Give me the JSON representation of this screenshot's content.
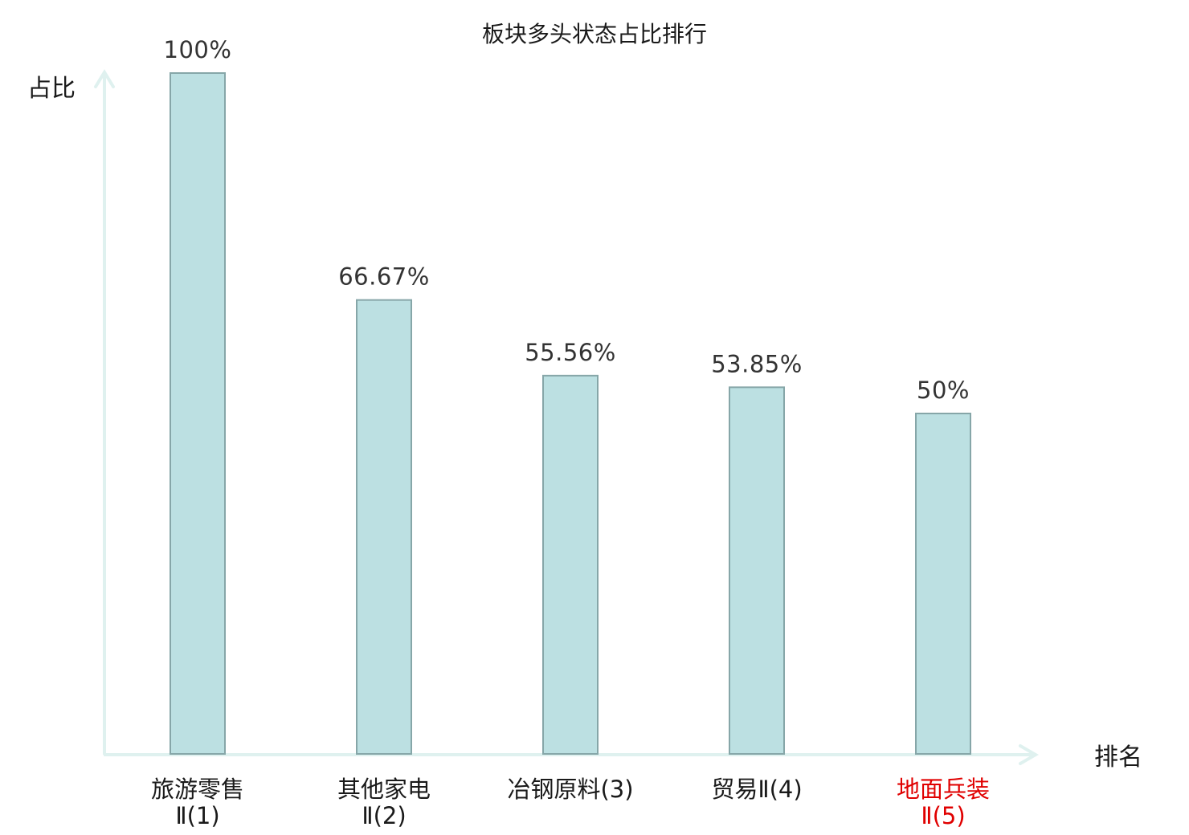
{
  "chart_data": {
    "type": "bar",
    "title": "板块多头状态占比排行",
    "xlabel": "排名",
    "ylabel": "占比",
    "ylim": [
      0,
      100
    ],
    "categories": [
      [
        "旅游零售",
        "Ⅱ(1)"
      ],
      [
        "其他家电",
        "Ⅱ(2)"
      ],
      [
        "冶钢原料(3)"
      ],
      [
        "贸易Ⅱ(4)"
      ],
      [
        "地面兵装",
        "Ⅱ(5)"
      ]
    ],
    "values": [
      100,
      66.67,
      55.56,
      53.85,
      50
    ],
    "value_labels": [
      "100%",
      "66.67%",
      "55.56%",
      "53.85%",
      "50%"
    ],
    "highlight_index": 4,
    "grid": false,
    "colors": {
      "bar_fill": "#bce0e2",
      "bar_stroke": "#86a6a8",
      "axis": "#dff1ef",
      "label": "#1a1a1a",
      "highlight_label": "#e00000"
    }
  }
}
